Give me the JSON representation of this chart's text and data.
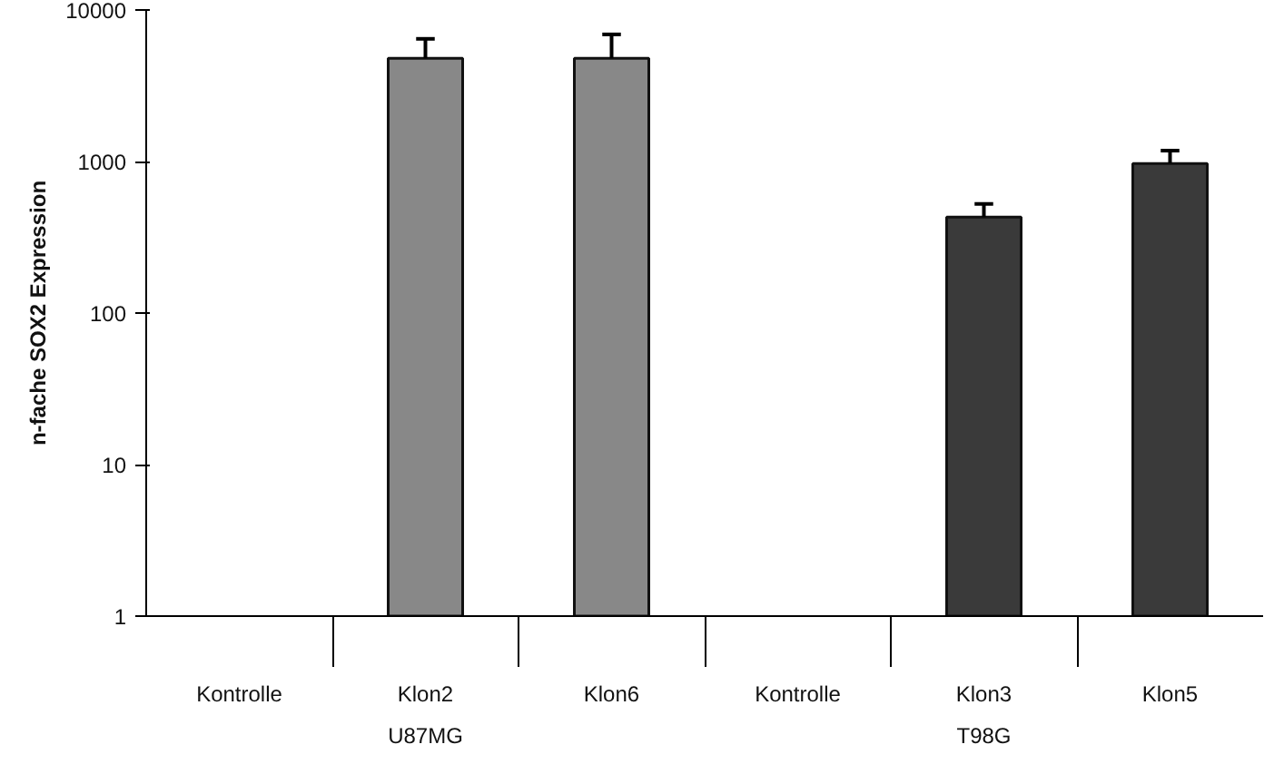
{
  "chart_data": {
    "type": "bar",
    "ylabel": "n-fache SOX2 Expression",
    "categories": [
      "Kontrolle",
      "Klon2",
      "Klon6",
      "Kontrolle",
      "Klon3",
      "Klon5"
    ],
    "values": [
      null,
      4800,
      4800,
      null,
      430,
      970
    ],
    "colors": [
      "#888888",
      "#888888",
      "#888888",
      "#3a3a3a",
      "#3a3a3a",
      "#3a3a3a"
    ],
    "errors": [
      null,
      [
        4800,
        6450
      ],
      [
        4800,
        6900
      ],
      null,
      [
        430,
        525
      ],
      [
        970,
        1180
      ]
    ],
    "log": "y",
    "ylim": [
      1,
      10000
    ],
    "yticks": [
      1,
      10,
      100,
      1000,
      10000
    ],
    "annotations": [
      "U87MG",
      "T98G"
    ]
  }
}
